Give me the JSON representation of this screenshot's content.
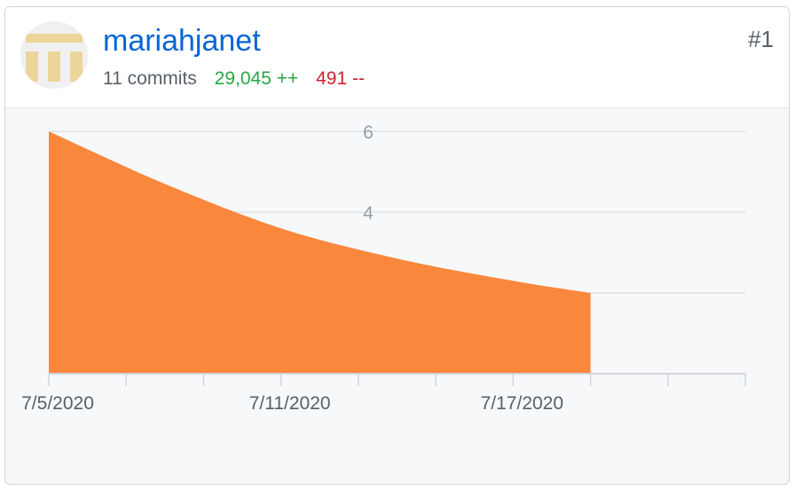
{
  "contributor": {
    "username": "mariahjanet",
    "rank": "#1",
    "commits": "11 commits",
    "additions": "29,045 ++",
    "deletions": "491 --",
    "avatar_icon": "identicon-icon"
  },
  "colors": {
    "area": "#f9873c",
    "link": "#0366d6",
    "additions": "#28a745",
    "deletions": "#cb2431"
  },
  "chart_data": {
    "type": "area",
    "x": [
      "7/5/2020",
      "7/8/2020",
      "7/11/2020",
      "7/14/2020",
      "7/17/2020",
      "7/19/2020"
    ],
    "series": [
      {
        "values": [
          6.0,
          4.7,
          3.6,
          2.85,
          2.3,
          2.0
        ]
      }
    ],
    "x_ticks": [
      "7/5/2020",
      "7/11/2020",
      "7/17/2020"
    ],
    "y_ticks": [
      2,
      4,
      6
    ],
    "y_tick_labels": [
      "",
      "4",
      "6"
    ],
    "ylim": [
      0,
      6
    ],
    "xlim": [
      "7/5/2020",
      "7/23/2020"
    ],
    "grid": true
  }
}
